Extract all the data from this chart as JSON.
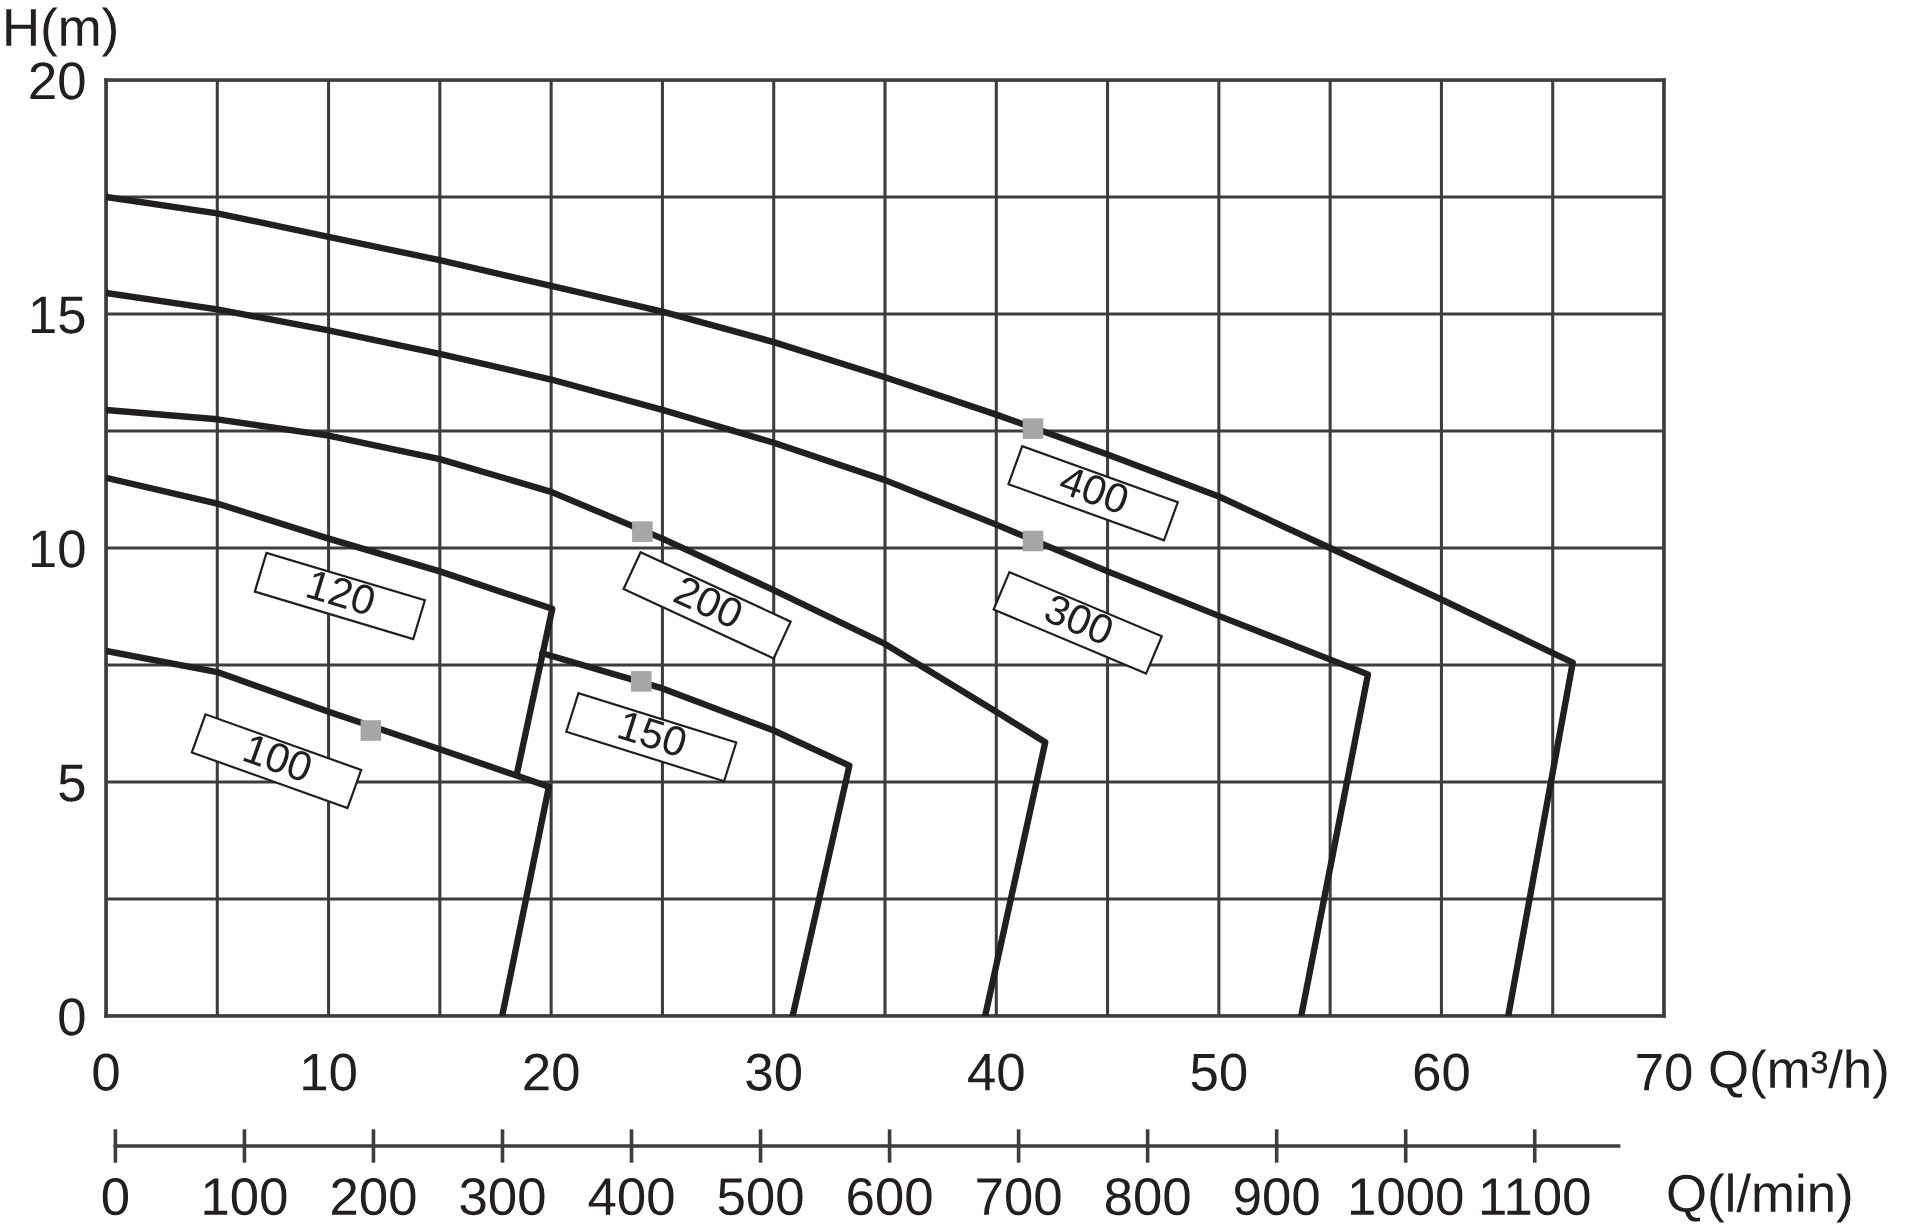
{
  "chart_data": {
    "type": "line",
    "xlabel": "Q(m³/h)",
    "ylabel": "H(m)",
    "xlim": [
      0,
      70
    ],
    "xticks": [
      0,
      {
        "value": 5,
        "label": null
      },
      10,
      {
        "value": 15,
        "label": null
      },
      20,
      {
        "value": 25,
        "label": null
      },
      30,
      {
        "value": 35,
        "label": null
      },
      40,
      {
        "value": 45,
        "label": null
      },
      50,
      {
        "value": 55,
        "label": null
      },
      60,
      {
        "value": 65,
        "label": null
      },
      70
    ],
    "ylim": [
      0,
      20
    ],
    "yticks": [
      0,
      {
        "value": 2.5,
        "label": null
      },
      5,
      {
        "value": 7.5,
        "label": null
      },
      10,
      {
        "value": 12.5,
        "label": null
      },
      15,
      {
        "value": 17.5,
        "label": null
      },
      20
    ],
    "x2label": "Q(l/min)",
    "x2lim": [
      0,
      1165
    ],
    "x2ticks": [
      0,
      100,
      200,
      300,
      400,
      500,
      600,
      700,
      800,
      900,
      1000,
      1100
    ],
    "grid": true,
    "series": [
      {
        "name": "100",
        "color": "#231f20",
        "x": [
          0,
          5,
          10,
          15,
          19.9,
          17.8
        ],
        "values": [
          7.8,
          7.35,
          6.5,
          5.7,
          4.9,
          0
        ]
      },
      {
        "name": "120",
        "color": "#231f20",
        "x": [
          0,
          5,
          10,
          15,
          20.05,
          18.45
        ],
        "values": [
          11.5,
          10.95,
          10.2,
          9.5,
          8.7,
          5.15
        ]
      },
      {
        "name": "150",
        "color": "#231f20",
        "x": [
          19.6,
          25,
          30,
          33.4,
          30.85
        ],
        "values": [
          7.75,
          7.0,
          6.1,
          5.35,
          0
        ]
      },
      {
        "name": "200",
        "color": "#231f20",
        "x": [
          0,
          5,
          10,
          15,
          20,
          25,
          30,
          35,
          40,
          42.2,
          39.5
        ],
        "values": [
          12.95,
          12.75,
          12.4,
          11.9,
          11.2,
          10.2,
          9.1,
          7.95,
          6.5,
          5.85,
          0
        ]
      },
      {
        "name": "300",
        "color": "#231f20",
        "x": [
          0,
          5,
          10,
          15,
          20,
          25,
          30,
          35,
          40,
          45,
          50,
          56.7,
          53.7
        ],
        "values": [
          15.45,
          15.1,
          14.65,
          14.15,
          13.6,
          12.95,
          12.25,
          11.45,
          10.5,
          9.5,
          8.55,
          7.3,
          0
        ]
      },
      {
        "name": "400",
        "color": "#231f20",
        "x": [
          0,
          5,
          10,
          15,
          20,
          25,
          30,
          35,
          40,
          45,
          50,
          55,
          60,
          65.9,
          63.0
        ],
        "values": [
          17.5,
          17.15,
          16.65,
          16.15,
          15.6,
          15.05,
          14.4,
          13.65,
          12.85,
          12.0,
          11.1,
          10.0,
          8.9,
          7.55,
          0
        ]
      },
      {
        "type": "scatter",
        "marker": "square",
        "color": "#a6a6a6",
        "x": [
          11.9,
          24.05,
          24.1,
          41.65,
          41.65
        ],
        "values": [
          6.1,
          7.15,
          10.35,
          10.15,
          12.55
        ]
      }
    ]
  }
}
